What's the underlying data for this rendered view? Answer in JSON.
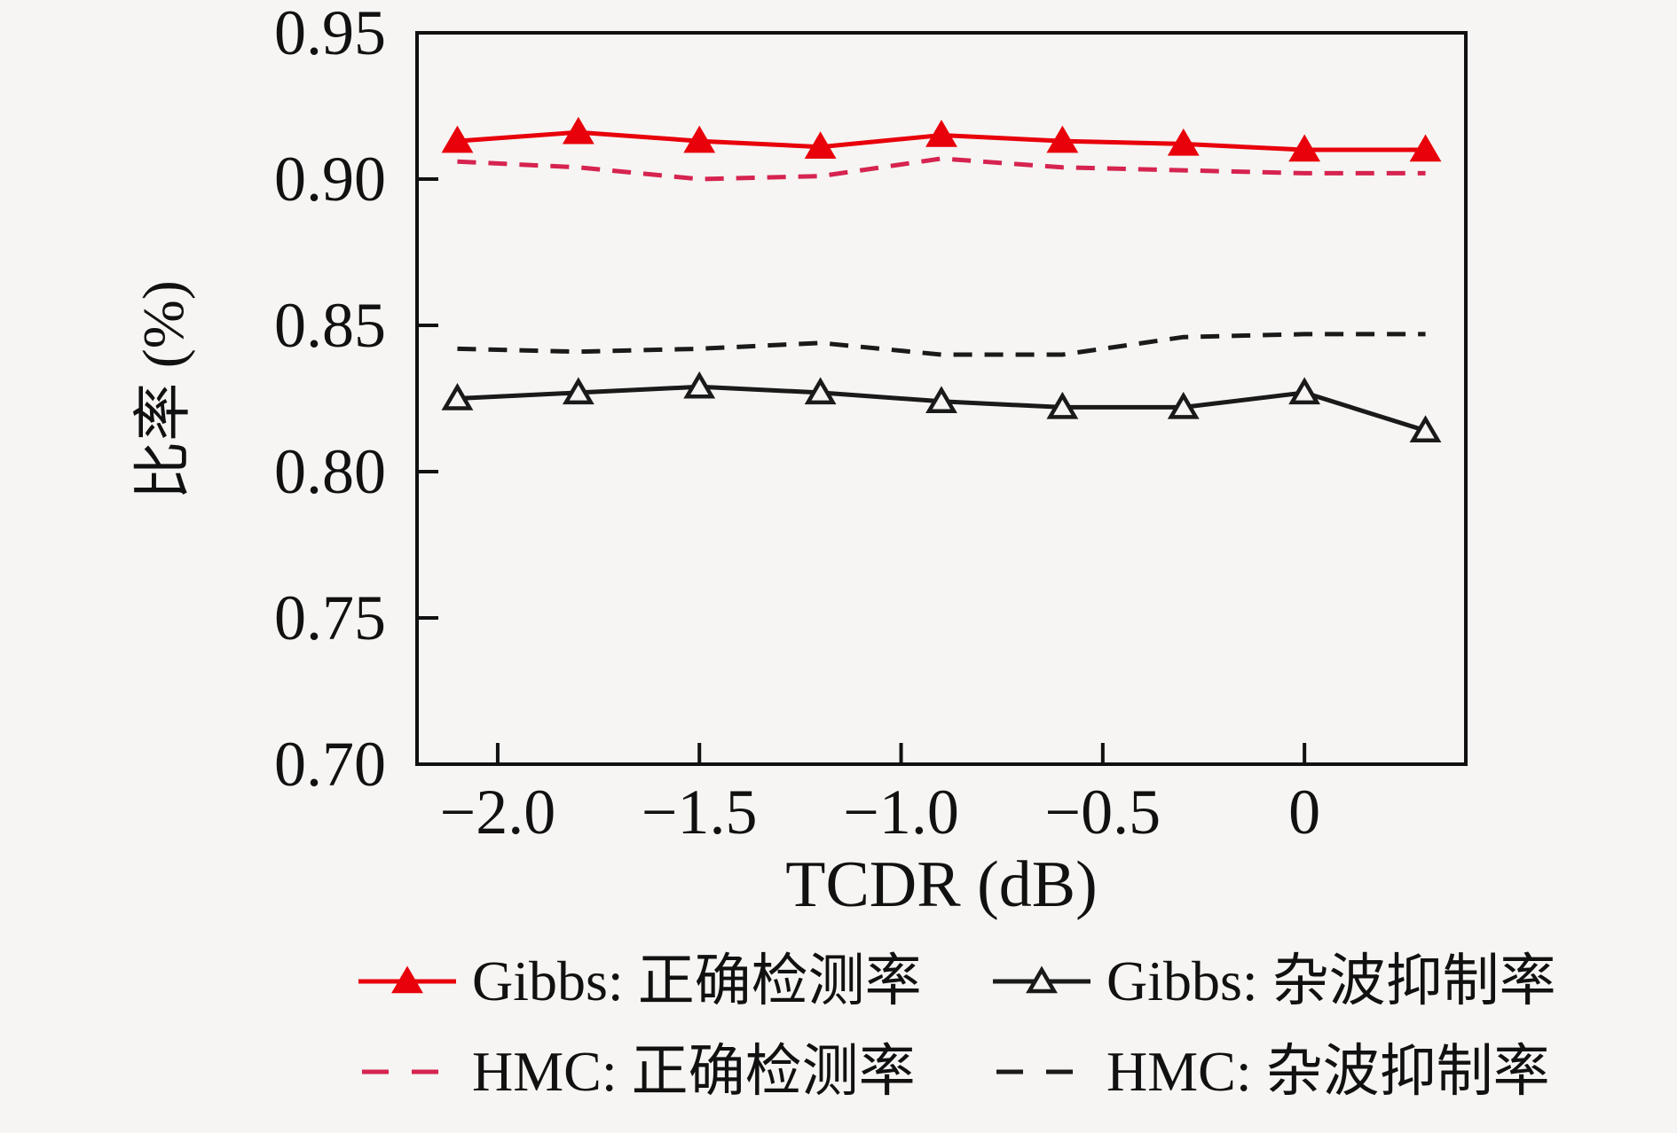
{
  "figure": {
    "background": "#f6f5f3",
    "axis_color": "#111111"
  },
  "chart_data": {
    "type": "line",
    "x": [
      -2.1,
      -1.8,
      -1.5,
      -1.2,
      -0.9,
      -0.6,
      -0.3,
      0.0,
      0.3
    ],
    "series": [
      {
        "name": "Gibbs: 正确检测率",
        "color": "#e8000b",
        "style": "solid",
        "marker": "triangle-up",
        "marker_fill": "filled",
        "values": [
          0.913,
          0.916,
          0.913,
          0.911,
          0.915,
          0.913,
          0.912,
          0.91,
          0.91
        ]
      },
      {
        "name": "HMC: 正确检测率",
        "color": "#d6234f",
        "style": "dashed",
        "marker": "none",
        "marker_fill": "none",
        "values": [
          0.906,
          0.904,
          0.9,
          0.901,
          0.907,
          0.904,
          0.903,
          0.902,
          0.902
        ]
      },
      {
        "name": "Gibbs: 杂波抑制率",
        "color": "#1a1a1a",
        "style": "solid",
        "marker": "triangle-up",
        "marker_fill": "open",
        "values": [
          0.825,
          0.827,
          0.829,
          0.827,
          0.824,
          0.822,
          0.822,
          0.827,
          0.814
        ]
      },
      {
        "name": "HMC: 杂波抑制率",
        "color": "#1a1a1a",
        "style": "dashed",
        "marker": "none",
        "marker_fill": "none",
        "values": [
          0.842,
          0.841,
          0.842,
          0.844,
          0.84,
          0.84,
          0.846,
          0.847,
          0.847
        ]
      }
    ],
    "title": "",
    "xlabel": "TCDR (dB)",
    "ylabel": "比率 (%)",
    "xlim": [
      -2.2,
      0.4
    ],
    "ylim": [
      0.7,
      0.95
    ],
    "xticks": {
      "values": [
        -2.0,
        -1.5,
        -1.0,
        -0.5,
        0
      ],
      "labels": [
        "−2.0",
        "−1.5",
        "−1.0",
        "−0.5",
        "0"
      ]
    },
    "yticks": {
      "values": [
        0.7,
        0.75,
        0.8,
        0.85,
        0.9,
        0.95
      ],
      "labels": [
        "0.70",
        "0.75",
        "0.80",
        "0.85",
        "0.90",
        "0.95"
      ]
    },
    "grid": false,
    "legend_position": "below-chart, 2 columns x 2 rows",
    "legend_row_major_series_order": [
      0,
      2,
      1,
      3
    ]
  }
}
